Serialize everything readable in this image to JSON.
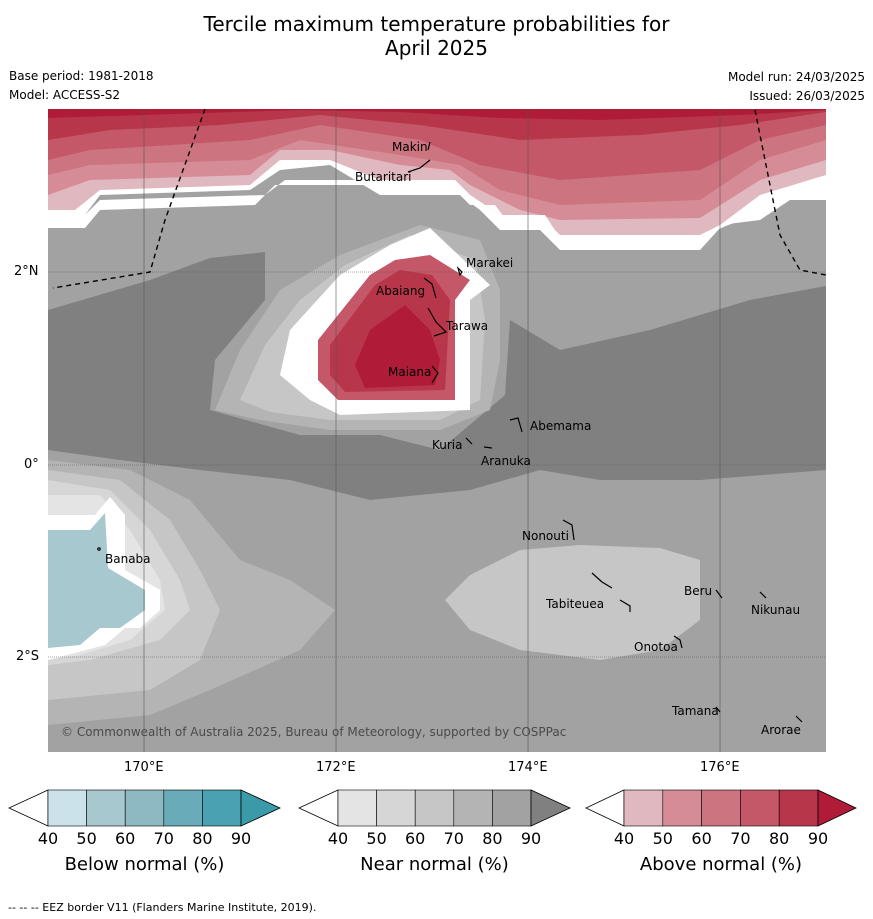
{
  "title_line1": "Tercile maximum temperature probabilities for",
  "title_line2": "April 2025",
  "base_period": "Base period: 1981-2018",
  "model": "Model: ACCESS-S2",
  "model_run": "Model run: 24/03/2025",
  "issued": "Issued: 26/03/2025",
  "copyright": "© Commonwealth of Australia 2025, Bureau of Meteorology, supported by COSPPac",
  "footer": "--  --  -- EEZ border V11 (Flanders Marine Institute, 2019).",
  "lat_labels": [
    "2°N",
    "0°",
    "2°S"
  ],
  "lon_labels": [
    "170°E",
    "172°E",
    "174°E",
    "176°E"
  ],
  "islands": [
    "Makin",
    "Butaritari",
    "Marakei",
    "Abaiang",
    "Tarawa",
    "Maiana",
    "Abemama",
    "Kuria",
    "Aranuka",
    "Nonouti",
    "Banaba",
    "Beru",
    "Nikunau",
    "Tabiteuea",
    "Onotoa",
    "Tamana",
    "Arorae"
  ],
  "colorbars": [
    {
      "label": "Below normal (%)",
      "ticks": [
        "40",
        "50",
        "60",
        "70",
        "80",
        "90"
      ],
      "colors": [
        "#ffffff",
        "#cce2ea",
        "#a8c8cf",
        "#8cb9c2",
        "#6aabba",
        "#4aa2b0",
        "#3a9aa8"
      ]
    },
    {
      "label": "Near normal (%)",
      "ticks": [
        "40",
        "50",
        "60",
        "70",
        "80",
        "90"
      ],
      "colors": [
        "#ffffff",
        "#e4e4e4",
        "#d6d6d6",
        "#c6c6c6",
        "#b4b4b4",
        "#a2a2a2",
        "#808080"
      ]
    },
    {
      "label": "Above normal (%)",
      "ticks": [
        "40",
        "50",
        "60",
        "70",
        "80",
        "90"
      ],
      "colors": [
        "#ffffff",
        "#e0b8bf",
        "#d68c97",
        "#cc7480",
        "#c45868",
        "#b8364a",
        "#b01c38"
      ]
    }
  ]
}
